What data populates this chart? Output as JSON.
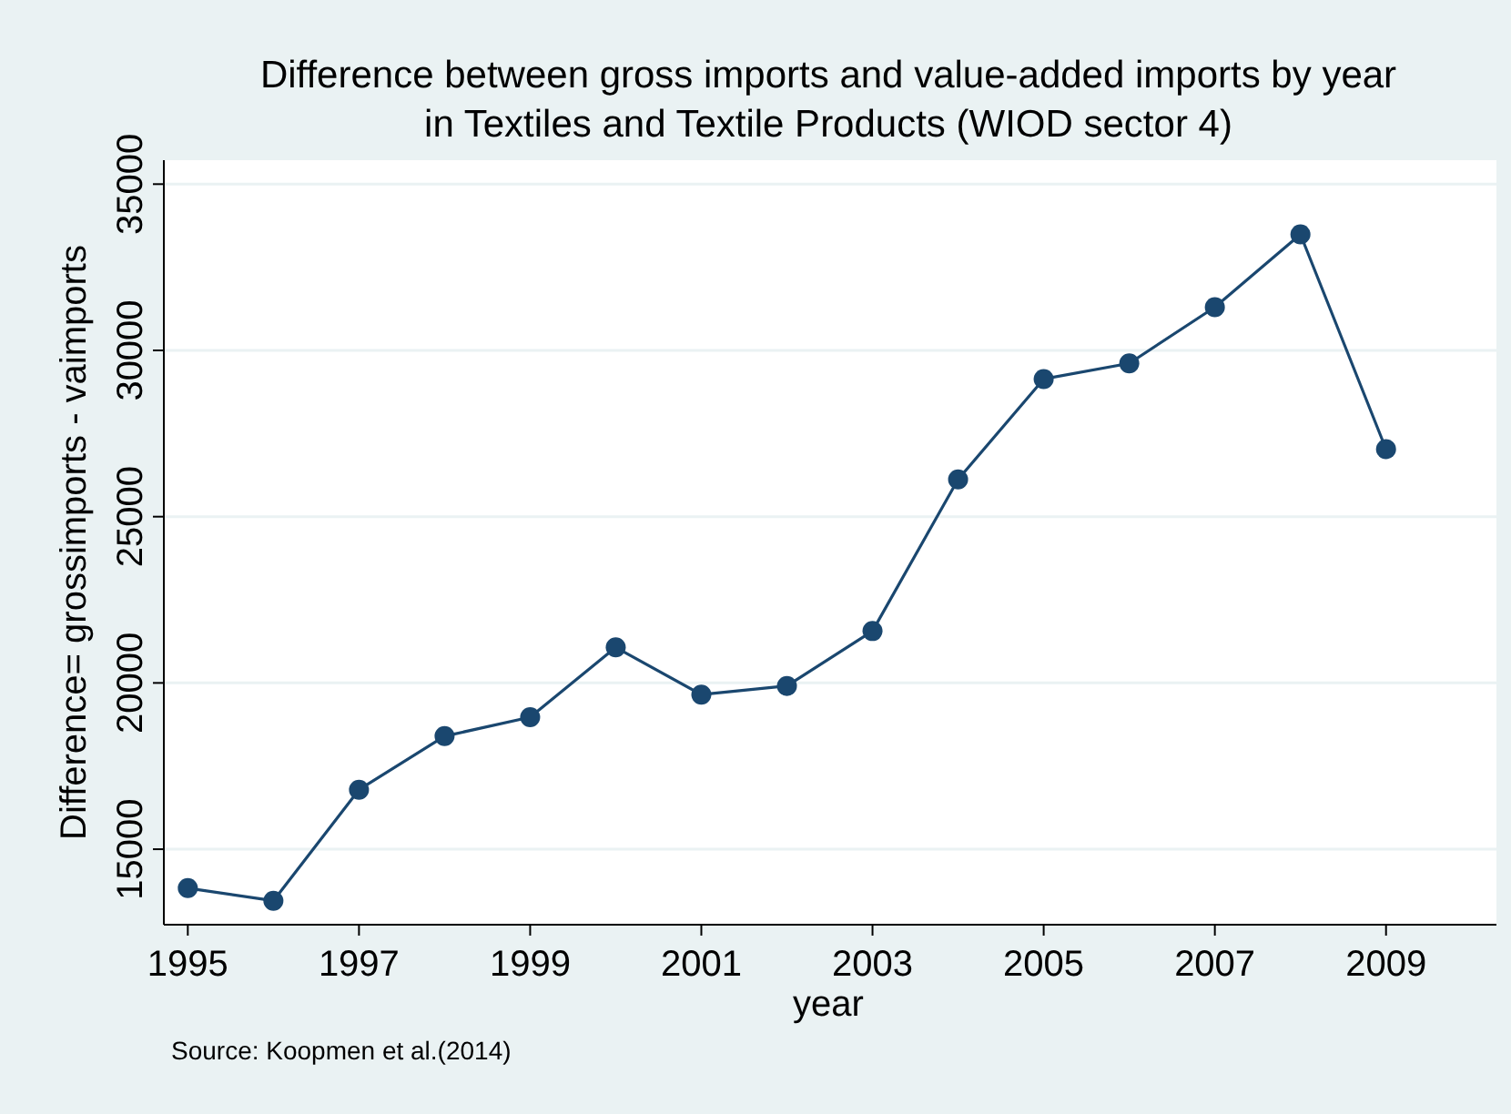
{
  "chart_data": {
    "type": "line",
    "title": "Difference between gross imports and value-added imports by year\nin Textiles and Textile Products (WIOD sector 4)",
    "xlabel": "year",
    "ylabel": "Difference= grossimports - vaimports",
    "annotations": [
      "Source: Koopmen et al.(2014)"
    ],
    "x": [
      1995,
      1996,
      1997,
      1998,
      1999,
      2000,
      2001,
      2002,
      2003,
      2004,
      2005,
      2006,
      2007,
      2008,
      2009
    ],
    "series": [
      {
        "color": "#1a476f",
        "values": [
          13830,
          13450,
          16790,
          18400,
          18970,
          21070,
          19650,
          19910,
          21560,
          26120,
          29140,
          29610,
          31300,
          33490,
          27030
        ]
      }
    ],
    "xlim": [
      1994.72,
      2010.29
    ],
    "xticks": [
      1995,
      1997,
      1999,
      2001,
      2003,
      2005,
      2007,
      2009
    ],
    "ylim": [
      12730,
      35720
    ],
    "yticks": [
      15000,
      20000,
      25000,
      30000,
      35000
    ],
    "grid": "y",
    "marker": "circle",
    "line_style": "solid"
  }
}
